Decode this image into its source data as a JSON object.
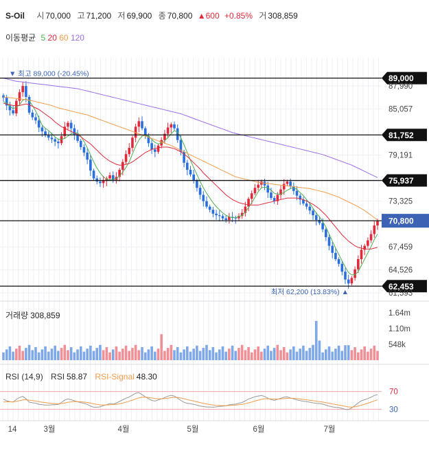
{
  "header": {
    "name": "S-Oil",
    "open_label": "시",
    "open": "70,000",
    "high_label": "고",
    "high": "71,200",
    "low_label": "저",
    "low": "69,900",
    "close_label": "종",
    "close": "70,800",
    "change": "▲600",
    "change_pct": "+0.85%",
    "volume_label": "거",
    "volume": "308,859"
  },
  "ma_legend": {
    "label": "이동평균",
    "items": [
      {
        "period": "5",
        "color": "#4caf50"
      },
      {
        "period": "20",
        "color": "#e0293a"
      },
      {
        "period": "60",
        "color": "#f39c4a"
      },
      {
        "period": "120",
        "color": "#9c6ee6"
      }
    ]
  },
  "colors": {
    "up": "#e0293a",
    "down": "#2a6fdb",
    "current_tag": "#3c63b4",
    "level_tag": "#111111",
    "rsi_line": "#999999",
    "rsi_signal": "#f39c4a",
    "volume_up": "#f08f96",
    "volume_down": "#7fa8e8"
  },
  "chart_data": [
    {
      "type": "candlestick",
      "ylim": [
        61600,
        91600
      ],
      "y_ticks": [
        "87,990",
        "85,057",
        "79,191",
        "73,325",
        "67,459",
        "64,526",
        "61,593"
      ],
      "x_ticks": [
        "14",
        "3월",
        "4월",
        "5월",
        "6월",
        "7월"
      ],
      "level_lines": [
        "89,000",
        "81,752",
        "75,937",
        "70,800",
        "62,453"
      ],
      "current_price": "70,800",
      "max_marker": {
        "symbol": "▼",
        "label": "최고",
        "value": "89,000",
        "pct": "(-20.45%)"
      },
      "min_marker": {
        "symbol": "▲",
        "label": "최저",
        "value": "62,200",
        "pct": "(13.83%)"
      },
      "closes": [
        86500,
        85500,
        84900,
        84500,
        86100,
        87200,
        88000,
        86600,
        84600,
        84000,
        83600,
        82700,
        82200,
        81700,
        81400,
        81200,
        80900,
        80700,
        81600,
        82800,
        83300,
        82600,
        81800,
        81000,
        80200,
        79500,
        78600,
        77200,
        76200,
        75800,
        75600,
        75900,
        76200,
        76600,
        76000,
        76400,
        77300,
        78300,
        79300,
        80100,
        81400,
        82800,
        83500,
        82600,
        81600,
        80700,
        79900,
        79600,
        80400,
        81100,
        81900,
        82700,
        83100,
        82600,
        81100,
        79600,
        78200,
        77300,
        76700,
        75900,
        75000,
        74100,
        73300,
        72600,
        72200,
        71700,
        71500,
        71400,
        71100,
        70900,
        71300,
        71200,
        71100,
        71400,
        71800,
        72600,
        73600,
        74300,
        75000,
        75400,
        75800,
        75300,
        74400,
        73700,
        73300,
        74100,
        74800,
        75500,
        75800,
        75200,
        74600,
        74000,
        73500,
        73000,
        72600,
        72100,
        71500,
        70900,
        70500,
        69700,
        68700,
        67600,
        66700,
        65900,
        65300,
        64300,
        63300,
        62800,
        63500,
        64600,
        65900,
        67100,
        67600,
        68300,
        69100,
        70200,
        70800
      ],
      "ma5": [
        86000,
        85800,
        85400,
        85100,
        85300,
        85600,
        86200,
        86300,
        86100,
        85500,
        84800,
        83900,
        83000,
        82600,
        82300,
        81900,
        81500,
        81200,
        81200,
        81300,
        81600,
        81900,
        82000,
        82000,
        81600,
        80900,
        80100,
        79200,
        78300,
        77500,
        76900,
        76400,
        76100,
        76000,
        76100,
        76200,
        76500,
        77000,
        77600,
        78300,
        79300,
        80300,
        81100,
        81600,
        81700,
        81600,
        81200,
        80800,
        80600,
        80700,
        81000,
        81400,
        81900,
        82300,
        82100,
        81400,
        80500,
        79500,
        78500,
        77600,
        76700,
        75800,
        75000,
        74300,
        73700,
        73100,
        72600,
        72200,
        71800,
        71500,
        71300,
        71200,
        71200,
        71300,
        71500,
        71900,
        72500,
        73100,
        73800,
        74500,
        75000,
        75100,
        75000,
        74700,
        74300,
        74200,
        74200,
        74400,
        74700,
        74900,
        75000,
        74800,
        74400,
        74000,
        73500,
        73000,
        72400,
        71800,
        71300,
        70700,
        70000,
        69100,
        68200,
        67300,
        66500,
        65700,
        64900,
        64200,
        63900,
        63900,
        64300,
        65100,
        65900,
        66700,
        67500,
        68400,
        69100
      ],
      "ma20": [
        85800,
        85700,
        85600,
        85500,
        85500,
        85500,
        85600,
        85700,
        85600,
        85400,
        85200,
        85000,
        84700,
        84400,
        84100,
        83800,
        83400,
        83100,
        82800,
        82600,
        82400,
        82200,
        82000,
        81800,
        81500,
        81200,
        80900,
        80600,
        80200,
        79800,
        79400,
        79000,
        78700,
        78400,
        78200,
        78000,
        77900,
        77900,
        78000,
        78100,
        78300,
        78600,
        78900,
        79200,
        79500,
        79700,
        79900,
        80000,
        80100,
        80200,
        80200,
        80200,
        80100,
        80000,
        79800,
        79600,
        79300,
        79000,
        78600,
        78200,
        77800,
        77400,
        76900,
        76500,
        76100,
        75700,
        75300,
        74900,
        74500,
        74100,
        73800,
        73500,
        73300,
        73100,
        73000,
        72900,
        72800,
        72800,
        72800,
        72800,
        72900,
        73000,
        73100,
        73200,
        73300,
        73400,
        73500,
        73600,
        73700,
        73700,
        73700,
        73700,
        73600,
        73500,
        73300,
        73100,
        72900,
        72600,
        72300,
        71900,
        71500,
        71000,
        70500,
        70000,
        69500,
        69000,
        68600,
        68200,
        67900,
        67600,
        67400,
        67300,
        67200,
        67200,
        67200,
        67300,
        67400
      ],
      "ma60": [
        86600,
        86550,
        86500,
        86450,
        86400,
        86350,
        86300,
        86250,
        86200,
        86100,
        86000,
        85900,
        85800,
        85700,
        85600,
        85500,
        85350,
        85200,
        85100,
        85000,
        84900,
        84800,
        84700,
        84600,
        84500,
        84400,
        84300,
        84150,
        84000,
        83850,
        83700,
        83550,
        83400,
        83250,
        83100,
        82950,
        82800,
        82650,
        82500,
        82350,
        82200,
        82050,
        81900,
        81750,
        81600,
        81450,
        81300,
        81150,
        81000,
        80850,
        80700,
        80550,
        80400,
        80200,
        80000,
        79800,
        79600,
        79400,
        79200,
        79000,
        78800,
        78600,
        78400,
        78200,
        78000,
        77800,
        77600,
        77400,
        77200,
        77000,
        76800,
        76600,
        76400,
        76300,
        76200,
        76100,
        76000,
        75900,
        75800,
        75700,
        75650,
        75600,
        75550,
        75500,
        75450,
        75400,
        75350,
        75300,
        75250,
        75200,
        75150,
        75100,
        75050,
        75000,
        74950,
        74900,
        74800,
        74700,
        74600,
        74500,
        74400,
        74250,
        74100,
        73950,
        73800,
        73600,
        73400,
        73200,
        73000,
        72800,
        72600,
        72350,
        72100,
        71800,
        71500,
        71200,
        70900
      ],
      "ma120": [
        89000,
        88900,
        88800,
        88700,
        88600,
        88550,
        88500,
        88450,
        88400,
        88350,
        88300,
        88250,
        88200,
        88150,
        88100,
        88050,
        88000,
        87950,
        87900,
        87850,
        87800,
        87750,
        87700,
        87650,
        87550,
        87450,
        87350,
        87250,
        87150,
        87050,
        86950,
        86850,
        86750,
        86650,
        86550,
        86450,
        86350,
        86250,
        86150,
        86050,
        85950,
        85850,
        85750,
        85650,
        85550,
        85450,
        85350,
        85250,
        85150,
        85050,
        84950,
        84850,
        84750,
        84650,
        84550,
        84450,
        84300,
        84150,
        84000,
        83850,
        83700,
        83550,
        83400,
        83250,
        83100,
        82950,
        82800,
        82650,
        82500,
        82350,
        82200,
        82050,
        81950,
        81850,
        81750,
        81650,
        81550,
        81450,
        81350,
        81250,
        81150,
        81050,
        80950,
        80850,
        80750,
        80650,
        80550,
        80450,
        80350,
        80250,
        80150,
        80050,
        79950,
        79850,
        79750,
        79650,
        79550,
        79450,
        79350,
        79250,
        79100,
        78950,
        78800,
        78650,
        78500,
        78350,
        78200,
        78050,
        77900,
        77700,
        77500,
        77300,
        77100,
        76900,
        76700,
        76500,
        76300
      ]
    },
    {
      "type": "bar",
      "title": "거래량",
      "current": "308,859",
      "y_ticks": [
        "1.64m",
        "1.10m",
        "548k"
      ],
      "ylim": [
        0,
        2000000
      ]
    },
    {
      "type": "line",
      "title": "RSI (14,9)",
      "series_labels": [
        {
          "name": "RSI",
          "value": "58.87"
        },
        {
          "name": "RSI-Signal",
          "value": "48.30"
        }
      ],
      "ylim": [
        15,
        85
      ],
      "y_ticks": [
        "70",
        "30"
      ]
    }
  ]
}
